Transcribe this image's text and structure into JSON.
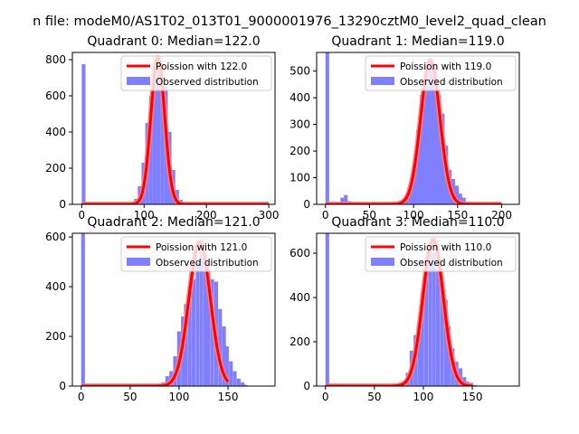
{
  "figure": {
    "suptitle": "n file: modeM0/AS1T02_013T01_9000001976_13290cztM0_level2_quad_clean"
  },
  "colors": {
    "hist": "#7f7fff",
    "poisson_line": "#ff0000",
    "poisson_fill": "#ff7f7f",
    "axis": "#000000",
    "background": "#ffffff"
  },
  "chart_data": [
    {
      "type": "bar",
      "title": "Quadrant 0: Median=122.0",
      "legend": {
        "placement": "top-right",
        "entries": [
          "Poission with 122.0",
          "Observed distribution"
        ]
      },
      "xlim": [
        -15,
        310
      ],
      "ylim": [
        0,
        840
      ],
      "xticks": [
        0,
        100,
        200,
        300
      ],
      "yticks": [
        0,
        200,
        400,
        600,
        800
      ],
      "poisson_mean": 122.0,
      "poisson_peak": 810,
      "hist_bin_width": 6,
      "hist": [
        [
          0,
          775
        ],
        [
          84,
          30
        ],
        [
          90,
          100
        ],
        [
          96,
          230
        ],
        [
          102,
          450
        ],
        [
          108,
          600
        ],
        [
          114,
          700
        ],
        [
          120,
          790
        ],
        [
          126,
          770
        ],
        [
          132,
          650
        ],
        [
          138,
          400
        ],
        [
          144,
          190
        ],
        [
          150,
          80
        ],
        [
          156,
          25
        ]
      ],
      "grid": false
    },
    {
      "type": "bar",
      "title": "Quadrant 1: Median=119.0",
      "legend": {
        "placement": "top-right",
        "entries": [
          "Poission with 119.0",
          "Observed distribution"
        ]
      },
      "xlim": [
        -10,
        220
      ],
      "ylim": [
        0,
        570
      ],
      "xticks": [
        0,
        50,
        100,
        150,
        200
      ],
      "yticks": [
        0,
        100,
        200,
        300,
        400,
        500
      ],
      "poisson_mean": 119.0,
      "poisson_peak": 540,
      "hist_bin_width": 4.2,
      "hist": [
        [
          0,
          570
        ],
        [
          17,
          25
        ],
        [
          21,
          35
        ],
        [
          25,
          12
        ],
        [
          29,
          5
        ],
        [
          33,
          3
        ],
        [
          37,
          2
        ],
        [
          41,
          3
        ],
        [
          79,
          3
        ],
        [
          83,
          5
        ],
        [
          87,
          15
        ],
        [
          91,
          25
        ],
        [
          95,
          60
        ],
        [
          99,
          150
        ],
        [
          103,
          280
        ],
        [
          107,
          410
        ],
        [
          111,
          470
        ],
        [
          115,
          520
        ],
        [
          119,
          530
        ],
        [
          123,
          520
        ],
        [
          127,
          410
        ],
        [
          131,
          340
        ],
        [
          135,
          220
        ],
        [
          139,
          130
        ],
        [
          143,
          95
        ],
        [
          147,
          70
        ],
        [
          151,
          40
        ],
        [
          155,
          25
        ],
        [
          159,
          10
        ],
        [
          163,
          5
        ]
      ],
      "grid": false
    },
    {
      "type": "bar",
      "title": "Quadrant 2: Median=121.0",
      "legend": {
        "placement": "top-right",
        "entries": [
          "Poission with 121.0",
          "Observed distribution"
        ]
      },
      "xlim": [
        -9,
        198
      ],
      "ylim": [
        0,
        615
      ],
      "xticks": [
        0,
        50,
        100,
        150
      ],
      "yticks": [
        0,
        200,
        400,
        600
      ],
      "poisson_mean": 121.0,
      "poisson_peak": 580,
      "hist_bin_width": 3.8,
      "hist": [
        [
          0,
          615
        ],
        [
          78,
          5
        ],
        [
          82,
          15
        ],
        [
          86,
          40
        ],
        [
          90,
          60
        ],
        [
          94,
          120
        ],
        [
          98,
          220
        ],
        [
          102,
          280
        ],
        [
          105,
          330
        ],
        [
          109,
          400
        ],
        [
          113,
          430
        ],
        [
          117,
          500
        ],
        [
          121,
          590
        ],
        [
          125,
          530
        ],
        [
          128,
          480
        ],
        [
          132,
          430
        ],
        [
          136,
          420
        ],
        [
          140,
          310
        ],
        [
          144,
          240
        ],
        [
          147,
          160
        ],
        [
          151,
          100
        ],
        [
          155,
          60
        ],
        [
          159,
          30
        ],
        [
          163,
          15
        ],
        [
          166,
          5
        ]
      ],
      "grid": false
    },
    {
      "type": "bar",
      "title": "Quadrant 3: Median=110.0",
      "legend": {
        "placement": "top-right",
        "entries": [
          "Poission with 110.0",
          "Observed distribution"
        ]
      },
      "xlim": [
        -9,
        198
      ],
      "ylim": [
        0,
        690
      ],
      "xticks": [
        0,
        50,
        100,
        150
      ],
      "yticks": [
        0,
        200,
        400,
        600
      ],
      "poisson_mean": 110.0,
      "poisson_peak": 660,
      "hist_bin_width": 3.8,
      "hist": [
        [
          0,
          690
        ],
        [
          70,
          5
        ],
        [
          74,
          15
        ],
        [
          78,
          20
        ],
        [
          82,
          60
        ],
        [
          86,
          160
        ],
        [
          90,
          230
        ],
        [
          94,
          270
        ],
        [
          97,
          420
        ],
        [
          101,
          550
        ],
        [
          105,
          650
        ],
        [
          109,
          600
        ],
        [
          113,
          530
        ],
        [
          117,
          470
        ],
        [
          121,
          390
        ],
        [
          124,
          270
        ],
        [
          128,
          170
        ],
        [
          132,
          110
        ],
        [
          136,
          80
        ],
        [
          140,
          40
        ],
        [
          143,
          20
        ],
        [
          147,
          15
        ],
        [
          151,
          5
        ]
      ],
      "grid": false
    }
  ]
}
